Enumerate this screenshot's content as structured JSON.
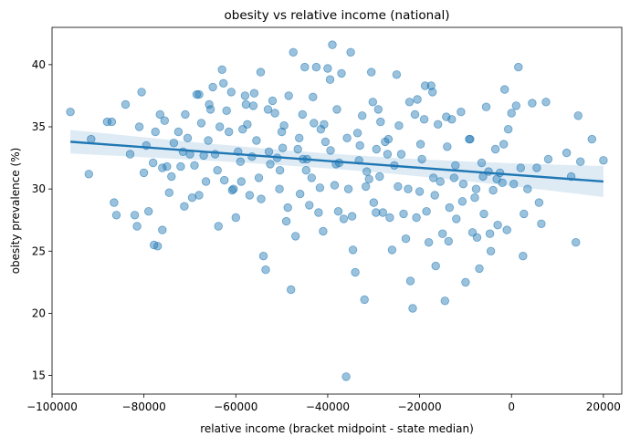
{
  "chart_data": {
    "type": "scatter",
    "title": "obesity vs relative income (national)",
    "xlabel": "relative income (bracket midpoint - state median)",
    "ylabel": "obesity prevalence (%)",
    "xlim": [
      -100000,
      24000
    ],
    "ylim": [
      13.5,
      43
    ],
    "x_ticks": [
      -100000,
      -80000,
      -60000,
      -40000,
      -20000,
      0,
      20000
    ],
    "x_tick_labels": [
      "−100000",
      "−80000",
      "−60000",
      "−40000",
      "−20000",
      "0",
      "20000"
    ],
    "y_ticks": [
      15,
      20,
      25,
      30,
      35,
      40
    ],
    "y_tick_labels": [
      "15",
      "20",
      "25",
      "30",
      "35",
      "40"
    ],
    "grid": false,
    "point_color": "#1f77b4",
    "line_color": "#1f77b4",
    "regression": {
      "x": [
        -96000,
        20000
      ],
      "y": [
        33.8,
        30.6
      ],
      "ci_lower": [
        32.9,
        29.4
      ],
      "ci_upper": [
        34.8,
        31.9
      ]
    },
    "points": [
      [
        -96000,
        36.2
      ],
      [
        -92000,
        31.2
      ],
      [
        -91500,
        34.0
      ],
      [
        -87000,
        35.4
      ],
      [
        -86500,
        28.9
      ],
      [
        -86000,
        27.9
      ],
      [
        -84000,
        36.8
      ],
      [
        -83000,
        32.8
      ],
      [
        -82000,
        27.9
      ],
      [
        -81500,
        27.0
      ],
      [
        -81000,
        35.0
      ],
      [
        -80500,
        37.8
      ],
      [
        -80000,
        31.3
      ],
      [
        -79000,
        28.2
      ],
      [
        -78000,
        32.1
      ],
      [
        -77500,
        34.6
      ],
      [
        -77000,
        25.4
      ],
      [
        -76500,
        36.0
      ],
      [
        -76000,
        31.7
      ],
      [
        -76000,
        26.7
      ],
      [
        -75500,
        35.5
      ],
      [
        -75000,
        31.8
      ],
      [
        -74000,
        31.0
      ],
      [
        -73500,
        33.7
      ],
      [
        -72500,
        34.6
      ],
      [
        -72000,
        31.8
      ],
      [
        -71500,
        33.0
      ],
      [
        -71000,
        36.0
      ],
      [
        -70500,
        34.1
      ],
      [
        -70000,
        32.8
      ],
      [
        -69500,
        29.3
      ],
      [
        -69000,
        31.9
      ],
      [
        -68500,
        37.6
      ],
      [
        -68000,
        29.5
      ],
      [
        -67500,
        35.3
      ],
      [
        -67000,
        32.7
      ],
      [
        -66500,
        30.6
      ],
      [
        -66000,
        33.9
      ],
      [
        -65500,
        36.4
      ],
      [
        -65000,
        38.2
      ],
      [
        -64500,
        32.8
      ],
      [
        -64000,
        31.5
      ],
      [
        -63500,
        35.0
      ],
      [
        -63000,
        39.6
      ],
      [
        -62500,
        30.7
      ],
      [
        -62000,
        36.3
      ],
      [
        -61500,
        34.6
      ],
      [
        -61000,
        37.8
      ],
      [
        -60500,
        30.0
      ],
      [
        -60000,
        27.7
      ],
      [
        -59500,
        33.0
      ],
      [
        -59000,
        32.2
      ],
      [
        -58500,
        34.8
      ],
      [
        -58000,
        37.5
      ],
      [
        -57500,
        35.2
      ],
      [
        -57000,
        29.5
      ],
      [
        -56500,
        32.6
      ],
      [
        -56000,
        37.7
      ],
      [
        -55500,
        33.9
      ],
      [
        -55000,
        30.9
      ],
      [
        -54500,
        29.2
      ],
      [
        -54000,
        24.6
      ],
      [
        -53500,
        23.5
      ],
      [
        -53000,
        36.4
      ],
      [
        -52500,
        32.0
      ],
      [
        -52000,
        37.1
      ],
      [
        -51500,
        36.1
      ],
      [
        -51000,
        32.5
      ],
      [
        -50500,
        30.0
      ],
      [
        -50000,
        34.6
      ],
      [
        -49500,
        35.1
      ],
      [
        -49000,
        27.4
      ],
      [
        -48500,
        37.5
      ],
      [
        -48000,
        21.9
      ],
      [
        -47500,
        41.0
      ],
      [
        -47000,
        26.2
      ],
      [
        -46500,
        33.2
      ],
      [
        -46000,
        29.6
      ],
      [
        -45500,
        36.0
      ],
      [
        -45000,
        39.8
      ],
      [
        -44500,
        32.4
      ],
      [
        -44000,
        28.7
      ],
      [
        -43500,
        30.9
      ],
      [
        -43000,
        35.3
      ],
      [
        -42500,
        39.8
      ],
      [
        -42000,
        28.1
      ],
      [
        -41500,
        34.8
      ],
      [
        -41000,
        26.6
      ],
      [
        -40500,
        33.8
      ],
      [
        -40000,
        39.7
      ],
      [
        -39500,
        38.8
      ],
      [
        -39000,
        41.6
      ],
      [
        -38500,
        30.3
      ],
      [
        -38000,
        36.4
      ],
      [
        -37500,
        32.1
      ],
      [
        -37000,
        39.3
      ],
      [
        -36500,
        27.6
      ],
      [
        -36000,
        14.9
      ],
      [
        -35500,
        30.0
      ],
      [
        -35000,
        41.0
      ],
      [
        -34500,
        25.1
      ],
      [
        -34000,
        23.3
      ],
      [
        -33500,
        34.5
      ],
      [
        -33000,
        33.5
      ],
      [
        -32500,
        35.9
      ],
      [
        -32000,
        21.1
      ],
      [
        -31500,
        31.4
      ],
      [
        -31000,
        30.8
      ],
      [
        -30500,
        39.4
      ],
      [
        -30000,
        28.9
      ],
      [
        -29500,
        28.1
      ],
      [
        -29000,
        36.4
      ],
      [
        -28500,
        35.4
      ],
      [
        -28000,
        28.1
      ],
      [
        -27500,
        33.8
      ],
      [
        -27000,
        32.8
      ],
      [
        -26500,
        27.7
      ],
      [
        -26000,
        25.1
      ],
      [
        -25500,
        31.9
      ],
      [
        -25000,
        39.2
      ],
      [
        -24500,
        35.1
      ],
      [
        -24000,
        32.8
      ],
      [
        -23500,
        28.0
      ],
      [
        -23000,
        26.0
      ],
      [
        -22500,
        30.0
      ],
      [
        -22000,
        22.6
      ],
      [
        -21500,
        20.4
      ],
      [
        -21000,
        36.0
      ],
      [
        -20500,
        37.2
      ],
      [
        -20000,
        29.8
      ],
      [
        -19500,
        32.4
      ],
      [
        -19000,
        35.6
      ],
      [
        -18500,
        28.2
      ],
      [
        -18000,
        25.7
      ],
      [
        -17500,
        38.3
      ],
      [
        -17000,
        30.9
      ],
      [
        -16500,
        23.8
      ],
      [
        -16000,
        35.2
      ],
      [
        -15500,
        30.6
      ],
      [
        -15000,
        26.4
      ],
      [
        -14500,
        21.0
      ],
      [
        -14000,
        33.4
      ],
      [
        -13500,
        28.5
      ],
      [
        -13000,
        35.6
      ],
      [
        -12500,
        30.9
      ],
      [
        -12000,
        27.6
      ],
      [
        -11000,
        36.2
      ],
      [
        -10500,
        30.4
      ],
      [
        -10000,
        22.5
      ],
      [
        -9000,
        34.0
      ],
      [
        -8500,
        26.5
      ],
      [
        -8000,
        29.3
      ],
      [
        -7500,
        26.1
      ],
      [
        -7000,
        23.6
      ],
      [
        -6500,
        32.1
      ],
      [
        -6000,
        28.0
      ],
      [
        -5500,
        36.6
      ],
      [
        -5000,
        31.4
      ],
      [
        -4500,
        25.0
      ],
      [
        -4000,
        29.9
      ],
      [
        -3500,
        33.2
      ],
      [
        -3000,
        27.1
      ],
      [
        -2500,
        31.3
      ],
      [
        -2000,
        30.5
      ],
      [
        -1500,
        38.0
      ],
      [
        -1000,
        26.7
      ],
      [
        0,
        36.1
      ],
      [
        500,
        30.4
      ],
      [
        1000,
        36.7
      ],
      [
        1500,
        39.8
      ],
      [
        2000,
        31.7
      ],
      [
        2500,
        24.6
      ],
      [
        3500,
        30.0
      ],
      [
        4500,
        36.9
      ],
      [
        5500,
        31.7
      ],
      [
        6000,
        28.9
      ],
      [
        6500,
        27.2
      ],
      [
        7500,
        37.0
      ],
      [
        8000,
        32.4
      ],
      [
        12000,
        32.9
      ],
      [
        13000,
        31.0
      ],
      [
        14000,
        25.7
      ],
      [
        14500,
        35.9
      ],
      [
        15000,
        32.2
      ],
      [
        17500,
        34.0
      ],
      [
        20000,
        32.3
      ],
      [
        -79500,
        33.5
      ],
      [
        -68000,
        37.6
      ],
      [
        -65800,
        36.8
      ],
      [
        -62700,
        38.5
      ],
      [
        -57800,
        36.8
      ],
      [
        -54600,
        39.4
      ],
      [
        -49800,
        33.3
      ],
      [
        -46200,
        34.1
      ],
      [
        -43200,
        37.4
      ],
      [
        -40800,
        35.2
      ],
      [
        -38200,
        32.0
      ],
      [
        -35800,
        34.1
      ],
      [
        -33200,
        32.3
      ],
      [
        -30200,
        37.0
      ],
      [
        -26800,
        34.0
      ],
      [
        -22200,
        37.0
      ],
      [
        -19800,
        33.6
      ],
      [
        -17200,
        37.8
      ],
      [
        -14200,
        35.8
      ],
      [
        -12200,
        31.9
      ],
      [
        -9200,
        34.0
      ],
      [
        -6200,
        31.0
      ],
      [
        -3200,
        30.8
      ],
      [
        -700,
        34.8
      ],
      [
        -88000,
        35.4
      ],
      [
        -74500,
        29.7
      ],
      [
        -71200,
        28.6
      ],
      [
        -63800,
        27.0
      ],
      [
        -58800,
        30.6
      ],
      [
        -52800,
        33.0
      ],
      [
        -48700,
        28.5
      ],
      [
        -44700,
        31.5
      ],
      [
        -41700,
        30.1
      ],
      [
        -37700,
        28.2
      ],
      [
        -34700,
        27.8
      ],
      [
        -31700,
        30.2
      ],
      [
        -28700,
        31.0
      ],
      [
        -24700,
        30.2
      ],
      [
        -20700,
        27.7
      ],
      [
        -16700,
        29.5
      ],
      [
        -13700,
        25.8
      ],
      [
        -10700,
        29.0
      ],
      [
        -7700,
        30.0
      ],
      [
        -4700,
        26.4
      ],
      [
        -1700,
        33.6
      ],
      [
        2700,
        28.0
      ],
      [
        -77800,
        25.5
      ],
      [
        -60800,
        29.9
      ],
      [
        -56200,
        36.7
      ],
      [
        -50400,
        31.5
      ],
      [
        -45400,
        32.4
      ],
      [
        -39400,
        33.1
      ],
      [
        -29400,
        33.2
      ],
      [
        -18800,
        38.3
      ]
    ]
  }
}
